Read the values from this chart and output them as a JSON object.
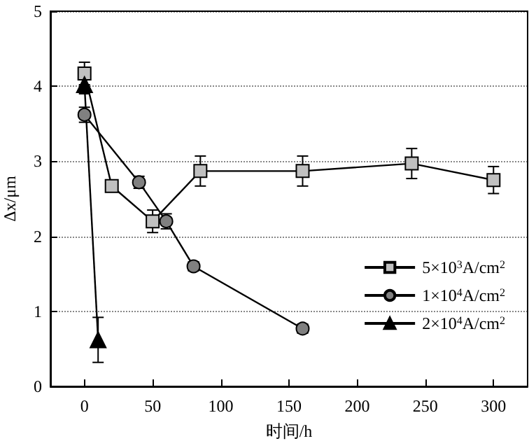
{
  "chart_data": {
    "type": "line",
    "xlabel": "时间/h",
    "ylabel": "Δx/μm",
    "xlim": [
      -25,
      325
    ],
    "xticks": [
      0,
      50,
      100,
      150,
      200,
      250,
      300
    ],
    "ylim": [
      0,
      5
    ],
    "yticks": [
      0,
      1,
      2,
      3,
      4,
      5
    ],
    "grid": "y",
    "legend": "right",
    "line_style": "solid",
    "series": [
      {
        "name": "5×10$^{3}$A/cm$^{2}$",
        "color": "#c0c0c0",
        "marker": "square",
        "x": [
          0,
          20,
          50,
          85,
          160,
          240,
          300
        ],
        "values": [
          4.17,
          2.67,
          2.2,
          2.87,
          2.87,
          2.97,
          2.75
        ],
        "errors": [
          0.15,
          0.05,
          0.15,
          0.2,
          0.2,
          0.2,
          0.18
        ]
      },
      {
        "name": "1×10$^{4}$A/cm$^{2}$",
        "color": "#808080",
        "marker": "circle",
        "x": [
          0,
          40,
          60,
          80,
          160
        ],
        "values": [
          3.62,
          2.72,
          2.2,
          1.6,
          0.77
        ],
        "errors": [
          0.1,
          0.08,
          0.1,
          0.06,
          0.06
        ]
      },
      {
        "name": "2×10$^{4}$A/cm$^{2}$",
        "color": "#000000",
        "marker": "triangle",
        "x": [
          0,
          10
        ],
        "values": [
          4.02,
          0.62
        ],
        "errors": [
          0.12,
          0.3
        ]
      }
    ]
  }
}
